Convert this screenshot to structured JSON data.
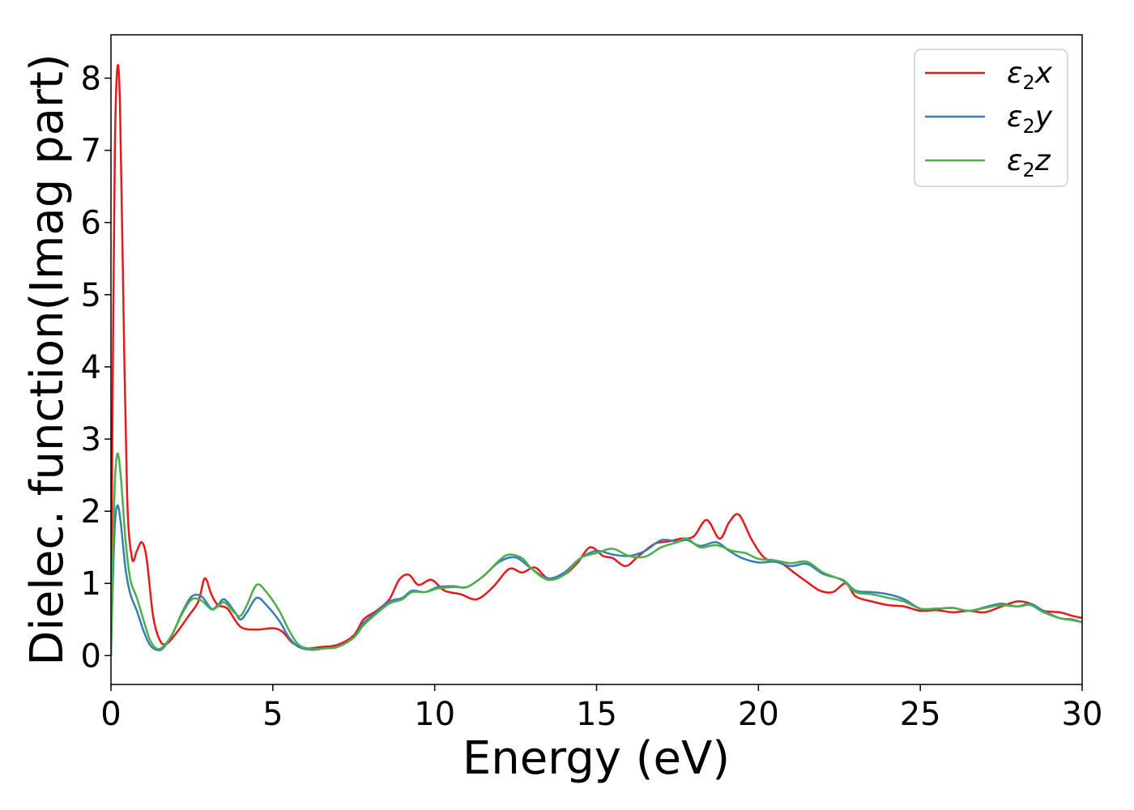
{
  "chart_data": {
    "type": "line",
    "xlabel": "Energy (eV)",
    "ylabel": "Dielec. function(Imag part)",
    "xlim": [
      0,
      30
    ],
    "ylim": [
      -0.4,
      8.6
    ],
    "xticks": [
      "0",
      "5",
      "10",
      "15",
      "20",
      "25",
      "30"
    ],
    "yticks": [
      "0",
      "1",
      "2",
      "3",
      "4",
      "5",
      "6",
      "7",
      "8"
    ],
    "grid": false,
    "legend_position": "top-right",
    "series": [
      {
        "name": "ε2x",
        "name_base": "ε",
        "name_sub": "2",
        "name_var": "x",
        "color": "#e41a1c",
        "points": [
          [
            0,
            0
          ],
          [
            0.05,
            3.5
          ],
          [
            0.12,
            7.0
          ],
          [
            0.2,
            8.15
          ],
          [
            0.28,
            7.6
          ],
          [
            0.38,
            5.0
          ],
          [
            0.5,
            2.2
          ],
          [
            0.65,
            1.35
          ],
          [
            0.8,
            1.45
          ],
          [
            0.95,
            1.57
          ],
          [
            1.1,
            1.35
          ],
          [
            1.3,
            0.55
          ],
          [
            1.5,
            0.22
          ],
          [
            1.7,
            0.16
          ],
          [
            2.0,
            0.3
          ],
          [
            2.4,
            0.55
          ],
          [
            2.7,
            0.75
          ],
          [
            2.9,
            1.07
          ],
          [
            3.1,
            0.85
          ],
          [
            3.3,
            0.7
          ],
          [
            3.6,
            0.65
          ],
          [
            4.0,
            0.4
          ],
          [
            4.5,
            0.36
          ],
          [
            5.0,
            0.38
          ],
          [
            5.3,
            0.33
          ],
          [
            5.6,
            0.18
          ],
          [
            6.0,
            0.1
          ],
          [
            6.5,
            0.12
          ],
          [
            7.0,
            0.15
          ],
          [
            7.5,
            0.28
          ],
          [
            7.8,
            0.5
          ],
          [
            8.2,
            0.62
          ],
          [
            8.6,
            0.78
          ],
          [
            8.9,
            1.05
          ],
          [
            9.2,
            1.12
          ],
          [
            9.5,
            0.98
          ],
          [
            9.9,
            1.05
          ],
          [
            10.3,
            0.9
          ],
          [
            10.8,
            0.85
          ],
          [
            11.3,
            0.78
          ],
          [
            11.8,
            0.95
          ],
          [
            12.3,
            1.2
          ],
          [
            12.7,
            1.15
          ],
          [
            13.1,
            1.22
          ],
          [
            13.5,
            1.07
          ],
          [
            14.0,
            1.12
          ],
          [
            14.4,
            1.28
          ],
          [
            14.8,
            1.5
          ],
          [
            15.2,
            1.38
          ],
          [
            15.5,
            1.35
          ],
          [
            15.9,
            1.24
          ],
          [
            16.3,
            1.38
          ],
          [
            16.8,
            1.55
          ],
          [
            17.2,
            1.58
          ],
          [
            17.6,
            1.62
          ],
          [
            18.0,
            1.65
          ],
          [
            18.4,
            1.88
          ],
          [
            18.8,
            1.62
          ],
          [
            19.1,
            1.85
          ],
          [
            19.4,
            1.95
          ],
          [
            19.8,
            1.6
          ],
          [
            20.2,
            1.35
          ],
          [
            20.7,
            1.28
          ],
          [
            21.1,
            1.15
          ],
          [
            21.5,
            1.02
          ],
          [
            21.9,
            0.9
          ],
          [
            22.3,
            0.88
          ],
          [
            22.7,
            1.0
          ],
          [
            23.0,
            0.82
          ],
          [
            23.5,
            0.75
          ],
          [
            24.0,
            0.7
          ],
          [
            24.5,
            0.68
          ],
          [
            25.0,
            0.62
          ],
          [
            25.5,
            0.63
          ],
          [
            26.0,
            0.6
          ],
          [
            26.5,
            0.62
          ],
          [
            27.0,
            0.6
          ],
          [
            27.5,
            0.68
          ],
          [
            28.0,
            0.75
          ],
          [
            28.4,
            0.72
          ],
          [
            28.8,
            0.62
          ],
          [
            29.3,
            0.6
          ],
          [
            29.7,
            0.55
          ],
          [
            30.0,
            0.52
          ]
        ]
      },
      {
        "name": "ε2y",
        "name_base": "ε",
        "name_sub": "2",
        "name_var": "y",
        "color": "#377eb8",
        "points": [
          [
            0,
            0
          ],
          [
            0.05,
            0.9
          ],
          [
            0.12,
            1.8
          ],
          [
            0.2,
            2.08
          ],
          [
            0.3,
            1.85
          ],
          [
            0.45,
            1.2
          ],
          [
            0.6,
            0.85
          ],
          [
            0.8,
            0.62
          ],
          [
            1.0,
            0.35
          ],
          [
            1.2,
            0.15
          ],
          [
            1.4,
            0.08
          ],
          [
            1.6,
            0.1
          ],
          [
            1.9,
            0.3
          ],
          [
            2.2,
            0.6
          ],
          [
            2.5,
            0.82
          ],
          [
            2.8,
            0.82
          ],
          [
            3.1,
            0.65
          ],
          [
            3.3,
            0.7
          ],
          [
            3.5,
            0.78
          ],
          [
            3.8,
            0.62
          ],
          [
            4.0,
            0.5
          ],
          [
            4.2,
            0.6
          ],
          [
            4.5,
            0.8
          ],
          [
            4.8,
            0.7
          ],
          [
            5.2,
            0.48
          ],
          [
            5.5,
            0.25
          ],
          [
            5.8,
            0.12
          ],
          [
            6.2,
            0.08
          ],
          [
            6.6,
            0.1
          ],
          [
            7.0,
            0.12
          ],
          [
            7.5,
            0.25
          ],
          [
            7.8,
            0.45
          ],
          [
            8.2,
            0.6
          ],
          [
            8.6,
            0.75
          ],
          [
            9.0,
            0.8
          ],
          [
            9.3,
            0.9
          ],
          [
            9.7,
            0.88
          ],
          [
            10.1,
            0.95
          ],
          [
            10.6,
            0.96
          ],
          [
            11.0,
            0.95
          ],
          [
            11.5,
            1.1
          ],
          [
            12.0,
            1.3
          ],
          [
            12.5,
            1.36
          ],
          [
            13.0,
            1.2
          ],
          [
            13.5,
            1.07
          ],
          [
            14.0,
            1.15
          ],
          [
            14.5,
            1.35
          ],
          [
            15.0,
            1.45
          ],
          [
            15.5,
            1.4
          ],
          [
            16.0,
            1.38
          ],
          [
            16.5,
            1.45
          ],
          [
            17.0,
            1.6
          ],
          [
            17.5,
            1.58
          ],
          [
            17.8,
            1.6
          ],
          [
            18.2,
            1.52
          ],
          [
            18.7,
            1.57
          ],
          [
            19.1,
            1.45
          ],
          [
            19.5,
            1.35
          ],
          [
            20.0,
            1.29
          ],
          [
            20.5,
            1.3
          ],
          [
            21.0,
            1.24
          ],
          [
            21.5,
            1.27
          ],
          [
            22.0,
            1.13
          ],
          [
            22.6,
            1.05
          ],
          [
            23.0,
            0.9
          ],
          [
            23.5,
            0.88
          ],
          [
            24.0,
            0.85
          ],
          [
            24.5,
            0.78
          ],
          [
            25.0,
            0.65
          ],
          [
            25.5,
            0.65
          ],
          [
            26.0,
            0.66
          ],
          [
            26.5,
            0.62
          ],
          [
            27.0,
            0.67
          ],
          [
            27.5,
            0.72
          ],
          [
            28.0,
            0.68
          ],
          [
            28.4,
            0.72
          ],
          [
            28.8,
            0.62
          ],
          [
            29.3,
            0.52
          ],
          [
            29.7,
            0.5
          ],
          [
            30.0,
            0.46
          ]
        ]
      },
      {
        "name": "ε2z",
        "name_base": "ε",
        "name_sub": "2",
        "name_var": "z",
        "color": "#4daf4a",
        "points": [
          [
            0,
            0
          ],
          [
            0.05,
            1.2
          ],
          [
            0.12,
            2.4
          ],
          [
            0.2,
            2.8
          ],
          [
            0.3,
            2.5
          ],
          [
            0.45,
            1.6
          ],
          [
            0.6,
            1.05
          ],
          [
            0.8,
            0.8
          ],
          [
            1.0,
            0.5
          ],
          [
            1.2,
            0.22
          ],
          [
            1.4,
            0.1
          ],
          [
            1.6,
            0.12
          ],
          [
            1.9,
            0.3
          ],
          [
            2.2,
            0.58
          ],
          [
            2.5,
            0.78
          ],
          [
            2.8,
            0.76
          ],
          [
            3.1,
            0.64
          ],
          [
            3.3,
            0.68
          ],
          [
            3.5,
            0.74
          ],
          [
            3.8,
            0.6
          ],
          [
            4.0,
            0.55
          ],
          [
            4.2,
            0.7
          ],
          [
            4.5,
            0.98
          ],
          [
            4.8,
            0.88
          ],
          [
            5.2,
            0.62
          ],
          [
            5.5,
            0.35
          ],
          [
            5.8,
            0.15
          ],
          [
            6.2,
            0.09
          ],
          [
            6.6,
            0.1
          ],
          [
            7.0,
            0.12
          ],
          [
            7.5,
            0.25
          ],
          [
            7.8,
            0.42
          ],
          [
            8.2,
            0.58
          ],
          [
            8.6,
            0.72
          ],
          [
            9.0,
            0.78
          ],
          [
            9.3,
            0.88
          ],
          [
            9.7,
            0.88
          ],
          [
            10.1,
            0.93
          ],
          [
            10.6,
            0.95
          ],
          [
            11.0,
            0.95
          ],
          [
            11.5,
            1.1
          ],
          [
            12.0,
            1.32
          ],
          [
            12.3,
            1.4
          ],
          [
            12.7,
            1.35
          ],
          [
            13.0,
            1.2
          ],
          [
            13.5,
            1.05
          ],
          [
            14.0,
            1.12
          ],
          [
            14.5,
            1.35
          ],
          [
            15.0,
            1.42
          ],
          [
            15.5,
            1.48
          ],
          [
            16.0,
            1.38
          ],
          [
            16.5,
            1.37
          ],
          [
            17.0,
            1.5
          ],
          [
            17.5,
            1.57
          ],
          [
            17.8,
            1.62
          ],
          [
            18.2,
            1.5
          ],
          [
            18.7,
            1.53
          ],
          [
            19.2,
            1.45
          ],
          [
            19.6,
            1.42
          ],
          [
            20.0,
            1.34
          ],
          [
            20.5,
            1.32
          ],
          [
            21.0,
            1.28
          ],
          [
            21.5,
            1.3
          ],
          [
            22.0,
            1.15
          ],
          [
            22.6,
            1.04
          ],
          [
            23.0,
            0.88
          ],
          [
            23.5,
            0.85
          ],
          [
            24.0,
            0.8
          ],
          [
            24.5,
            0.75
          ],
          [
            25.0,
            0.65
          ],
          [
            25.5,
            0.65
          ],
          [
            26.0,
            0.66
          ],
          [
            26.5,
            0.62
          ],
          [
            27.0,
            0.66
          ],
          [
            27.5,
            0.7
          ],
          [
            28.0,
            0.68
          ],
          [
            28.4,
            0.7
          ],
          [
            28.8,
            0.6
          ],
          [
            29.3,
            0.52
          ],
          [
            29.7,
            0.49
          ],
          [
            30.0,
            0.46
          ]
        ]
      }
    ]
  }
}
